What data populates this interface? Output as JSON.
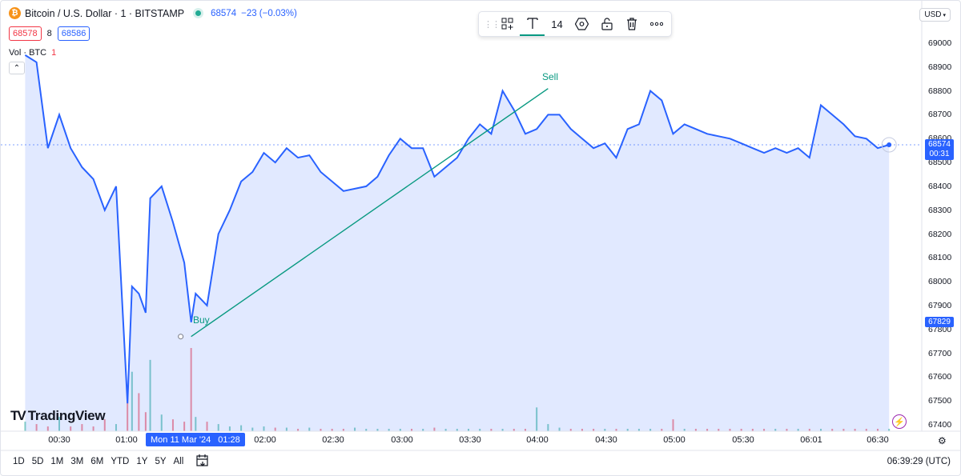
{
  "legend": {
    "symbol_icon": "bitcoin-icon",
    "title": "Bitcoin / U.S. Dollar · 1 · BITSTAMP",
    "price": "68574",
    "change": "−23 (−0.03%)"
  },
  "quote": {
    "bid": "68578",
    "spread": "8",
    "ask": "68586"
  },
  "volume": {
    "label": "Vol · BTC",
    "value": "1"
  },
  "toolbar": {
    "font_size": "14"
  },
  "currency": "USD",
  "y_ticks": [
    "69000",
    "68900",
    "68800",
    "68700",
    "68600",
    "68500",
    "68400",
    "68300",
    "68200",
    "68100",
    "68000",
    "67900",
    "67800",
    "67700",
    "67600",
    "67500",
    "67400"
  ],
  "last_price": {
    "value": "68574",
    "countdown": "00:31"
  },
  "trade_price_tag": "67829",
  "x_ticks": [
    "00:30",
    "01:00",
    "02:00",
    "02:30",
    "03:00",
    "03:30",
    "04:00",
    "04:30",
    "05:00",
    "05:30",
    "06:01",
    "06:30"
  ],
  "crosshair": {
    "date": "Mon 11 Mar '24",
    "time": "01:28"
  },
  "ranges": [
    "1D",
    "5D",
    "1M",
    "3M",
    "6M",
    "YTD",
    "1Y",
    "5Y",
    "All"
  ],
  "clock": "06:39:29 (UTC)",
  "markers": {
    "buy": "Buy",
    "sell": "Sell"
  },
  "brand": "TradingView",
  "alert_count": "1",
  "colors": {
    "line": "#2962ff",
    "up": "#22ab94",
    "down": "#f23645",
    "trend": "#089981"
  },
  "chart_data": {
    "type": "area",
    "ylim": [
      67350,
      69050
    ],
    "x": [
      "00:15",
      "00:20",
      "00:25",
      "00:30",
      "00:35",
      "00:40",
      "00:45",
      "00:50",
      "00:55",
      "01:00",
      "01:02",
      "01:05",
      "01:08",
      "01:10",
      "01:15",
      "01:20",
      "01:25",
      "01:28",
      "01:30",
      "01:35",
      "01:40",
      "01:45",
      "01:50",
      "01:55",
      "02:00",
      "02:05",
      "02:10",
      "02:15",
      "02:20",
      "02:25",
      "02:30",
      "02:35",
      "02:40",
      "02:45",
      "02:50",
      "02:55",
      "03:00",
      "03:05",
      "03:10",
      "03:15",
      "03:20",
      "03:25",
      "03:30",
      "03:35",
      "03:40",
      "03:45",
      "03:50",
      "03:55",
      "04:00",
      "04:05",
      "04:10",
      "04:15",
      "04:20",
      "04:25",
      "04:30",
      "04:35",
      "04:40",
      "04:45",
      "04:50",
      "04:55",
      "05:00",
      "05:05",
      "05:10",
      "05:15",
      "05:20",
      "05:25",
      "05:30",
      "05:35",
      "05:40",
      "05:45",
      "05:50",
      "05:55",
      "06:00",
      "06:05",
      "06:10",
      "06:15",
      "06:20",
      "06:25",
      "06:30",
      "06:35"
    ],
    "values": [
      68950,
      68920,
      68560,
      68700,
      68560,
      68480,
      68430,
      68300,
      68400,
      67490,
      67980,
      67950,
      67870,
      68350,
      68400,
      68250,
      68080,
      67830,
      67950,
      67900,
      68200,
      68300,
      68420,
      68460,
      68540,
      68500,
      68560,
      68520,
      68530,
      68460,
      68420,
      68380,
      68390,
      68400,
      68440,
      68530,
      68600,
      68560,
      68560,
      68440,
      68480,
      68520,
      68600,
      68660,
      68620,
      68800,
      68720,
      68620,
      68640,
      68700,
      68700,
      68640,
      68600,
      68560,
      68580,
      68520,
      68640,
      68660,
      68800,
      68760,
      68620,
      68660,
      68640,
      68620,
      68610,
      68600,
      68580,
      68560,
      68540,
      68560,
      68540,
      68560,
      68520,
      68740,
      68700,
      68660,
      68610,
      68600,
      68560,
      68574
    ],
    "volume": [
      8,
      6,
      4,
      12,
      4,
      6,
      4,
      10,
      6,
      38,
      50,
      32,
      16,
      60,
      14,
      10,
      8,
      70,
      12,
      8,
      6,
      4,
      5,
      3,
      4,
      3,
      3,
      2,
      3,
      2,
      2,
      2,
      3,
      2,
      2,
      2,
      2,
      2,
      2,
      3,
      2,
      2,
      2,
      2,
      2,
      2,
      2,
      2,
      20,
      6,
      3,
      2,
      2,
      2,
      2,
      2,
      2,
      2,
      2,
      2,
      10,
      2,
      2,
      2,
      2,
      2,
      2,
      2,
      2,
      2,
      2,
      2,
      2,
      2,
      2,
      2,
      2,
      2,
      2,
      2
    ],
    "trades": [
      {
        "side": "Buy",
        "time": "01:28",
        "price": 67770
      },
      {
        "side": "Sell",
        "time": "04:05",
        "price": 68810
      }
    ]
  }
}
